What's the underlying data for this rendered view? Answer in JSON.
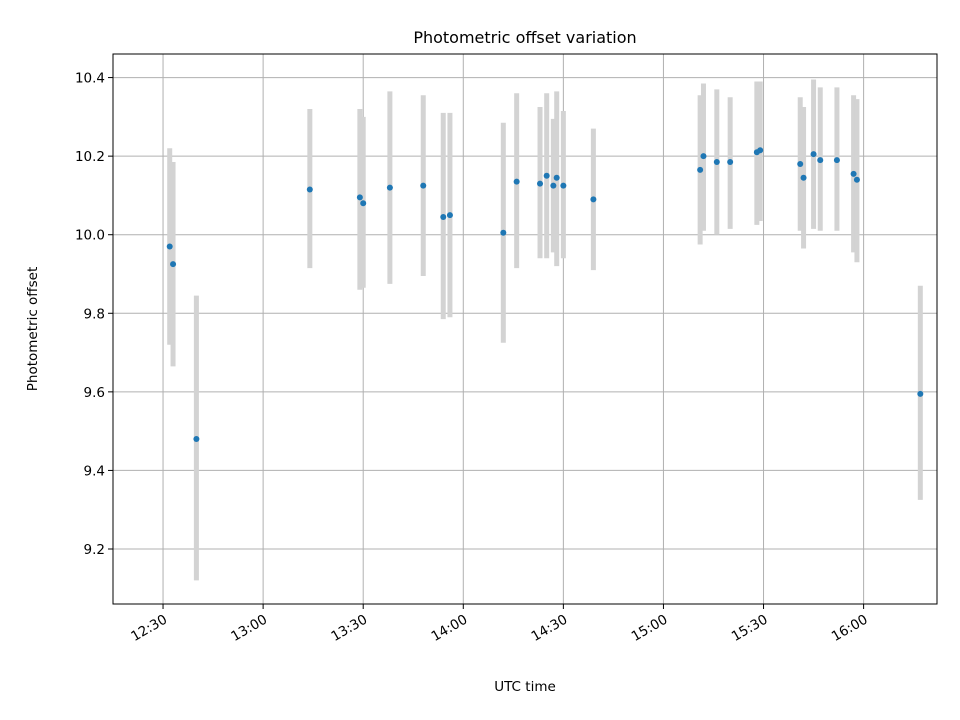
{
  "chart_data": {
    "type": "scatter",
    "title": "Photometric offset variation",
    "xlabel": "UTC time",
    "ylabel": "Photometric offset",
    "grid": true,
    "xlim": [
      "12:15",
      "16:22"
    ],
    "ylim": [
      9.06,
      10.46
    ],
    "x_ticks": [
      "12:30",
      "13:00",
      "13:30",
      "14:00",
      "14:30",
      "15:00",
      "15:30",
      "16:00"
    ],
    "y_ticks": [
      "9.2",
      "9.4",
      "9.6",
      "9.8",
      "10.0",
      "10.2",
      "10.4"
    ],
    "point_color": "#1f77b4",
    "errorbar_color": "#d3d3d3",
    "points": [
      {
        "x": "12:32",
        "y": 9.97,
        "lo": 9.72,
        "hi": 10.22
      },
      {
        "x": "12:33",
        "y": 9.925,
        "lo": 9.665,
        "hi": 10.185
      },
      {
        "x": "12:40",
        "y": 9.48,
        "lo": 9.12,
        "hi": 9.845
      },
      {
        "x": "13:14",
        "y": 10.115,
        "lo": 9.915,
        "hi": 10.32
      },
      {
        "x": "13:29",
        "y": 10.095,
        "lo": 9.86,
        "hi": 10.32
      },
      {
        "x": "13:30",
        "y": 10.08,
        "lo": 9.865,
        "hi": 10.3
      },
      {
        "x": "13:38",
        "y": 10.12,
        "lo": 9.875,
        "hi": 10.365
      },
      {
        "x": "13:48",
        "y": 10.125,
        "lo": 9.895,
        "hi": 10.355
      },
      {
        "x": "13:54",
        "y": 10.045,
        "lo": 9.785,
        "hi": 10.31
      },
      {
        "x": "13:56",
        "y": 10.05,
        "lo": 9.79,
        "hi": 10.31
      },
      {
        "x": "14:12",
        "y": 10.005,
        "lo": 9.725,
        "hi": 10.285
      },
      {
        "x": "14:16",
        "y": 10.135,
        "lo": 9.915,
        "hi": 10.36
      },
      {
        "x": "14:23",
        "y": 10.13,
        "lo": 9.94,
        "hi": 10.325
      },
      {
        "x": "14:25",
        "y": 10.15,
        "lo": 9.94,
        "hi": 10.36
      },
      {
        "x": "14:27",
        "y": 10.125,
        "lo": 9.955,
        "hi": 10.295
      },
      {
        "x": "14:28",
        "y": 10.145,
        "lo": 9.92,
        "hi": 10.365
      },
      {
        "x": "14:30",
        "y": 10.125,
        "lo": 9.94,
        "hi": 10.315
      },
      {
        "x": "14:39",
        "y": 10.09,
        "lo": 9.91,
        "hi": 10.27
      },
      {
        "x": "15:11",
        "y": 10.165,
        "lo": 9.975,
        "hi": 10.355
      },
      {
        "x": "15:12",
        "y": 10.2,
        "lo": 10.01,
        "hi": 10.385
      },
      {
        "x": "15:16",
        "y": 10.185,
        "lo": 10.0,
        "hi": 10.37
      },
      {
        "x": "15:20",
        "y": 10.185,
        "lo": 10.015,
        "hi": 10.35
      },
      {
        "x": "15:28",
        "y": 10.21,
        "lo": 10.025,
        "hi": 10.39
      },
      {
        "x": "15:29",
        "y": 10.215,
        "lo": 10.035,
        "hi": 10.39
      },
      {
        "x": "15:41",
        "y": 10.18,
        "lo": 10.01,
        "hi": 10.35
      },
      {
        "x": "15:42",
        "y": 10.145,
        "lo": 9.965,
        "hi": 10.325
      },
      {
        "x": "15:45",
        "y": 10.205,
        "lo": 10.015,
        "hi": 10.395
      },
      {
        "x": "15:47",
        "y": 10.19,
        "lo": 10.01,
        "hi": 10.375
      },
      {
        "x": "15:52",
        "y": 10.19,
        "lo": 10.01,
        "hi": 10.375
      },
      {
        "x": "15:57",
        "y": 10.155,
        "lo": 9.955,
        "hi": 10.355
      },
      {
        "x": "15:58",
        "y": 10.14,
        "lo": 9.93,
        "hi": 10.345
      },
      {
        "x": "16:17",
        "y": 9.595,
        "lo": 9.325,
        "hi": 9.87
      }
    ]
  }
}
